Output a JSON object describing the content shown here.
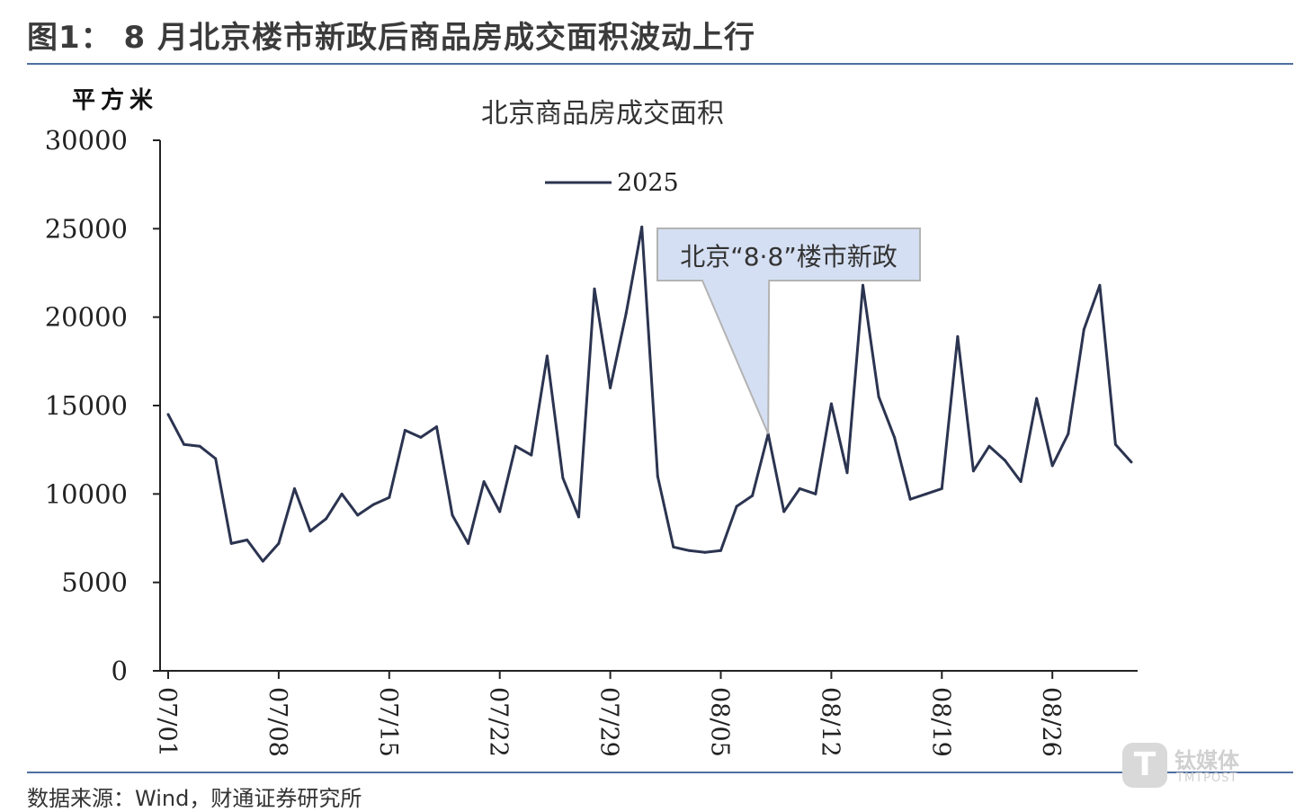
{
  "figure_title": "图1： 8 月北京楼市新政后商品房成交面积波动上行",
  "source": "数据来源：Wind，财通证券研究所",
  "watermark": {
    "mark": "T",
    "name": "钛媒体",
    "name_en": "TMTPOST"
  },
  "colors": {
    "line": "#2b3450",
    "rule": "#4f6fa0",
    "annotation_fill": "#d5dff3",
    "annotation_border": "#b3b3b3"
  },
  "chart_data": {
    "type": "line",
    "title": "北京商品房成交面积",
    "ylabel": "平方米",
    "xlabel": "",
    "ylim": [
      0,
      30000
    ],
    "yticks": [
      0,
      5000,
      10000,
      15000,
      20000,
      25000,
      30000
    ],
    "xtick_labels": [
      "07/01",
      "07/08",
      "07/15",
      "07/22",
      "07/29",
      "08/05",
      "08/12",
      "08/19",
      "08/26"
    ],
    "legend": {
      "position": "top-center"
    },
    "grid": false,
    "series": [
      {
        "name": "2025",
        "x": [
          "07/01",
          "07/02",
          "07/03",
          "07/04",
          "07/05",
          "07/06",
          "07/07",
          "07/08",
          "07/09",
          "07/10",
          "07/11",
          "07/12",
          "07/13",
          "07/14",
          "07/15",
          "07/16",
          "07/17",
          "07/18",
          "07/19",
          "07/20",
          "07/21",
          "07/22",
          "07/23",
          "07/24",
          "07/25",
          "07/26",
          "07/27",
          "07/28",
          "07/29",
          "07/30",
          "07/31",
          "08/01",
          "08/02",
          "08/03",
          "08/04",
          "08/05",
          "08/06",
          "08/07",
          "08/08",
          "08/09",
          "08/10",
          "08/11",
          "08/12",
          "08/13",
          "08/14",
          "08/15",
          "08/16",
          "08/17",
          "08/18",
          "08/19",
          "08/20",
          "08/21",
          "08/22",
          "08/23",
          "08/24",
          "08/25",
          "08/26",
          "08/27",
          "08/28",
          "08/29",
          "08/30",
          "08/31"
        ],
        "values": [
          14500,
          12800,
          12700,
          12000,
          7200,
          7400,
          6200,
          7200,
          10300,
          7900,
          8600,
          10000,
          8800,
          9400,
          9800,
          13600,
          13200,
          13800,
          8800,
          7200,
          10700,
          9000,
          12700,
          12200,
          17800,
          10900,
          8700,
          21600,
          16000,
          20200,
          25100,
          11000,
          7000,
          6800,
          6700,
          6800,
          9300,
          9900,
          13400,
          9000,
          10300,
          10000,
          15100,
          11200,
          21800,
          15500,
          13200,
          9700,
          10000,
          10300,
          18900,
          11300,
          12700,
          11900,
          10700,
          15400,
          11600,
          13400,
          19300,
          21800,
          12800,
          11800
        ]
      }
    ],
    "annotations": [
      {
        "text": "北京“8·8”楼市新政",
        "x": "08/08",
        "y": 13400
      }
    ]
  }
}
